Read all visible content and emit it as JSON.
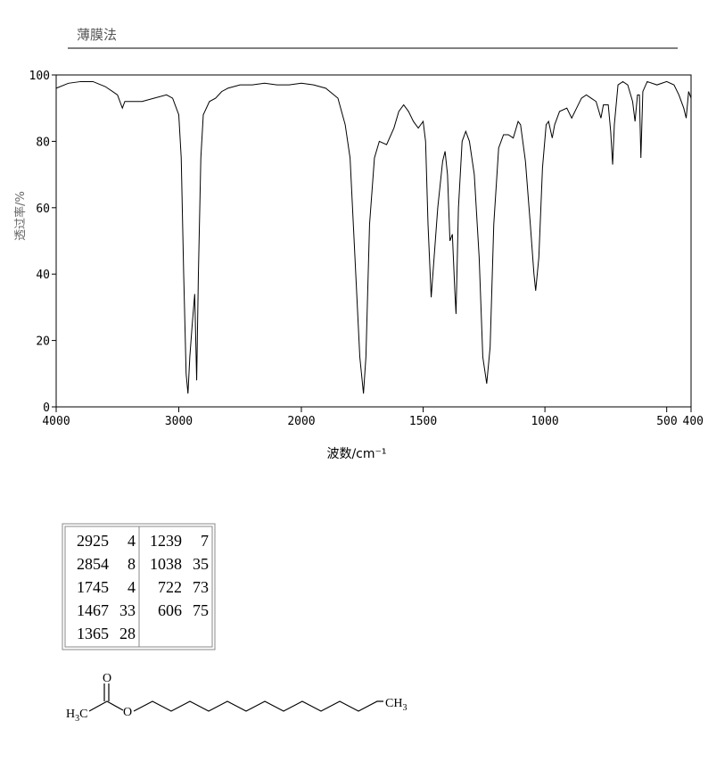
{
  "header": {
    "title": "薄膜法"
  },
  "chart_data": {
    "type": "line",
    "xlabel": "波数/cm⁻¹",
    "ylabel": "透过率/%",
    "xlim": [
      4000,
      400
    ],
    "ylim": [
      0,
      100
    ],
    "xticks": [
      4000,
      3000,
      2000,
      1500,
      1000,
      500,
      400
    ],
    "yticks": [
      0,
      20,
      40,
      60,
      80,
      100
    ],
    "x_scale_break": 2000,
    "color": "#000000",
    "x": [
      4000,
      3900,
      3800,
      3700,
      3600,
      3500,
      3460,
      3440,
      3300,
      3200,
      3100,
      3050,
      3000,
      2980,
      2960,
      2940,
      2925,
      2910,
      2890,
      2870,
      2854,
      2840,
      2820,
      2800,
      2750,
      2700,
      2650,
      2600,
      2500,
      2400,
      2300,
      2200,
      2100,
      2000,
      1950,
      1900,
      1850,
      1820,
      1800,
      1780,
      1760,
      1745,
      1735,
      1720,
      1700,
      1680,
      1650,
      1620,
      1600,
      1580,
      1560,
      1540,
      1520,
      1500,
      1490,
      1480,
      1467,
      1455,
      1440,
      1420,
      1410,
      1400,
      1390,
      1380,
      1370,
      1365,
      1355,
      1340,
      1325,
      1310,
      1290,
      1270,
      1255,
      1239,
      1225,
      1210,
      1190,
      1170,
      1150,
      1130,
      1110,
      1100,
      1080,
      1060,
      1045,
      1038,
      1025,
      1010,
      995,
      985,
      970,
      960,
      940,
      910,
      890,
      870,
      850,
      830,
      810,
      790,
      770,
      760,
      740,
      730,
      722,
      715,
      700,
      680,
      660,
      640,
      630,
      620,
      612,
      606,
      598,
      580,
      540,
      500,
      470,
      450,
      430,
      420,
      410,
      400
    ],
    "values": [
      96,
      97.5,
      98,
      98,
      96.5,
      94,
      90,
      92,
      92,
      93,
      94,
      93,
      88,
      75,
      40,
      10,
      4,
      15,
      25,
      34,
      8,
      40,
      75,
      88,
      92,
      93,
      95,
      96,
      97,
      97,
      97.5,
      97,
      97,
      97.5,
      97,
      96,
      93,
      85,
      75,
      45,
      15,
      4,
      15,
      55,
      75,
      80,
      79,
      84,
      89,
      91,
      89,
      86,
      84,
      86,
      80,
      55,
      33,
      45,
      60,
      74,
      77,
      70,
      50,
      52,
      35,
      28,
      60,
      80,
      83,
      80,
      70,
      45,
      15,
      7,
      18,
      55,
      78,
      82,
      82,
      81,
      86,
      85,
      74,
      55,
      40,
      35,
      45,
      72,
      85,
      86,
      81,
      85,
      89,
      90,
      87,
      90,
      93,
      94,
      93,
      92,
      87,
      91,
      91,
      83,
      73,
      85,
      97,
      98,
      97,
      92,
      86,
      94,
      94,
      75,
      95,
      98,
      97,
      98,
      97,
      94,
      90,
      87,
      95,
      93
    ]
  },
  "peak_table": {
    "columns": [
      [
        [
          "2925",
          "4"
        ],
        [
          "2854",
          "8"
        ],
        [
          "1745",
          "4"
        ],
        [
          "1467",
          "33"
        ],
        [
          "1365",
          "28"
        ]
      ],
      [
        [
          "1239",
          "7"
        ],
        [
          "1038",
          "35"
        ],
        [
          "722",
          "73"
        ],
        [
          "606",
          "75"
        ]
      ]
    ]
  },
  "structure": {
    "carbonyl_o": "O",
    "ester_o": "O",
    "left": {
      "h": "H",
      "sub": "3",
      "c": "C"
    },
    "right": {
      "ch": "CH",
      "sub": "3"
    }
  }
}
